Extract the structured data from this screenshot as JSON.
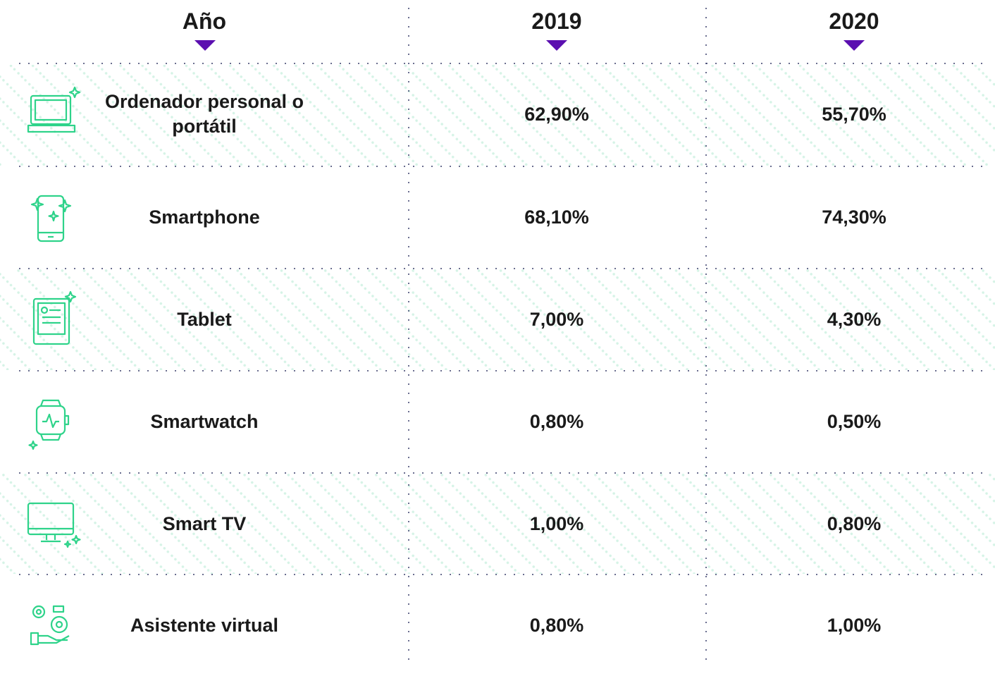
{
  "table": {
    "header": [
      "Año",
      "2019",
      "2020"
    ],
    "rows": [
      [
        "Ordenador personal o portátil",
        "62,90%",
        "55,70%"
      ],
      [
        "Smartphone",
        "68,10%",
        "74,30%"
      ],
      [
        "Tablet",
        "7,00%",
        "4,30%"
      ],
      [
        "Smartwatch",
        "0,80%",
        "0,50%"
      ],
      [
        "Smart TV",
        "1,00%",
        "0,80%"
      ],
      [
        "Asistente virtual",
        "0,80%",
        "1,00%"
      ]
    ]
  }
}
